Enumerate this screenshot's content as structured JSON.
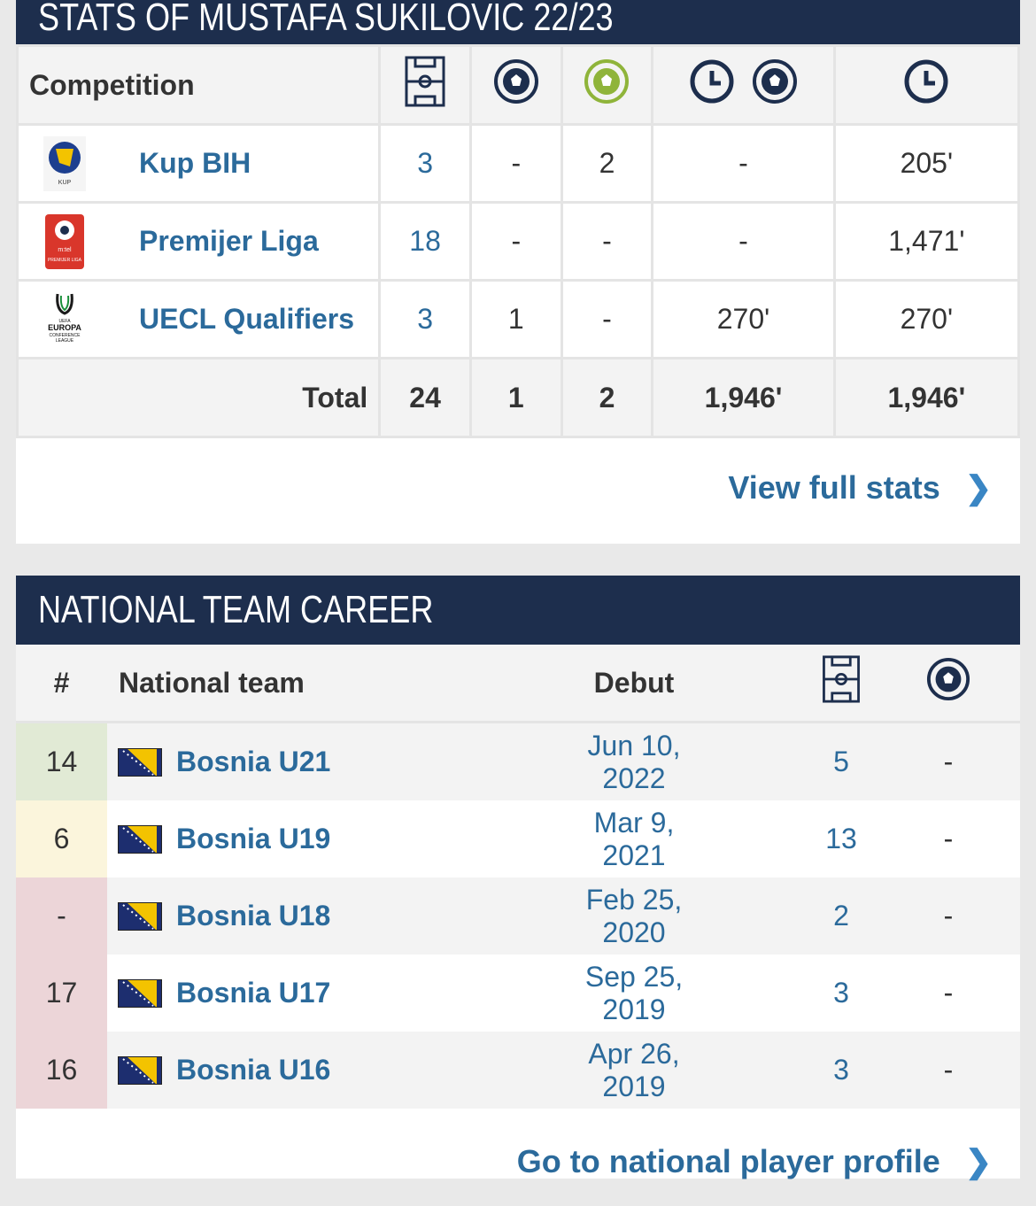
{
  "stats": {
    "title": "STATS OF MUSTAFA SUKILOVIC 22/23",
    "competition_header": "Competition",
    "column_icons": [
      "pitch-icon",
      "ball-icon",
      "assist-icon",
      "minutes-per-goal-icon",
      "minutes-icon"
    ],
    "rows": [
      {
        "name": "Kup BIH",
        "logo": "kup-bih-logo",
        "apps": "3",
        "goals": "-",
        "assists": "2",
        "mpg": "-",
        "minutes": "205'"
      },
      {
        "name": "Premijer Liga",
        "logo": "premijer-liga-logo",
        "apps": "18",
        "goals": "-",
        "assists": "-",
        "mpg": "-",
        "minutes": "1,471'"
      },
      {
        "name": "UECL Qualifiers",
        "logo": "europa-conference-league-logo",
        "apps": "3",
        "goals": "1",
        "assists": "-",
        "mpg": "270'",
        "minutes": "270'"
      }
    ],
    "total": {
      "label": "Total",
      "apps": "24",
      "goals": "1",
      "assists": "2",
      "mpg": "1,946'",
      "minutes": "1,946'"
    },
    "view_full": "View full stats",
    "logo_text": {
      "kup": "KUP",
      "mtel": "m:tel",
      "pl": "PREMIJER LIGA",
      "uefa": "UEFA",
      "europa": "EUROPA",
      "conf": "CONFERENCE",
      "league": "LEAGUE"
    }
  },
  "national": {
    "title": "NATIONAL TEAM CAREER",
    "headers": {
      "num": "#",
      "team": "National team",
      "debut": "Debut"
    },
    "rows": [
      {
        "num": "14",
        "team": "Bosnia U21",
        "debut": "Jun 10, 2022",
        "apps": "5",
        "goals": "-",
        "color": "#e1ead5"
      },
      {
        "num": "6",
        "team": "Bosnia U19",
        "debut": "Mar 9, 2021",
        "apps": "13",
        "goals": "-",
        "color": "#fbf5dc"
      },
      {
        "num": "-",
        "team": "Bosnia U18",
        "debut": "Feb 25, 2020",
        "apps": "2",
        "goals": "-",
        "color": "#ecd5d8"
      },
      {
        "num": "17",
        "team": "Bosnia U17",
        "debut": "Sep 25, 2019",
        "apps": "3",
        "goals": "-",
        "color": "#ecd5d8"
      },
      {
        "num": "16",
        "team": "Bosnia U16",
        "debut": "Apr 26, 2019",
        "apps": "3",
        "goals": "-",
        "color": "#ecd5d8"
      }
    ],
    "profile_link": "Go to national player profile"
  }
}
